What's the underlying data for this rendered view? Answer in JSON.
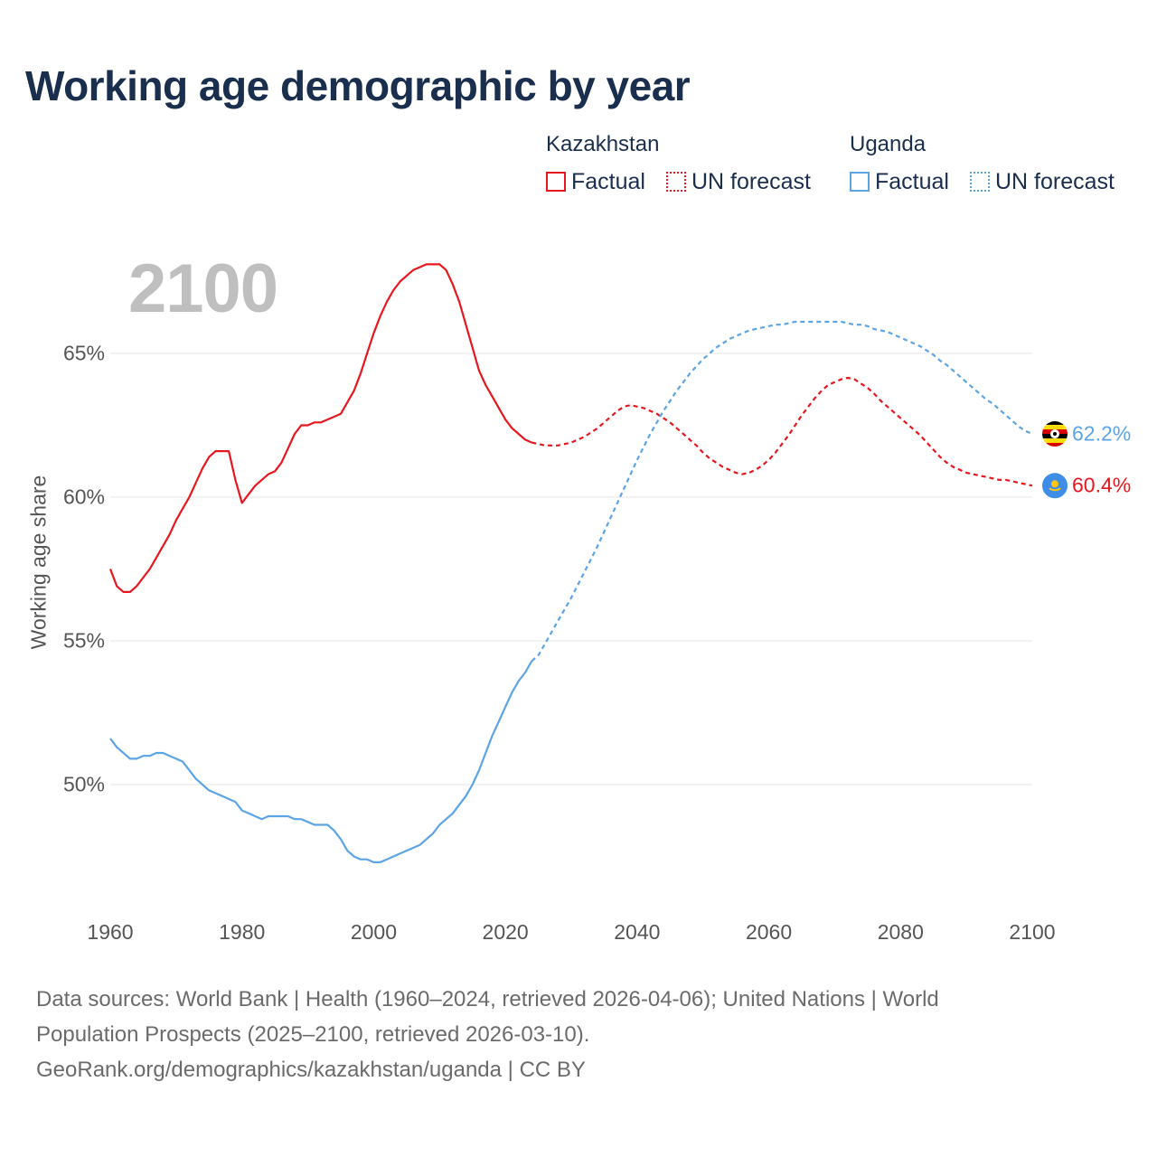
{
  "title": "Working age demographic by year",
  "year_display": "2100",
  "legend": {
    "groups": [
      {
        "country": "Kazakhstan",
        "factual_label": "Factual",
        "forecast_label": "UN forecast",
        "color": "#e8171f"
      },
      {
        "country": "Uganda",
        "factual_label": "Factual",
        "forecast_label": "UN forecast",
        "color": "#5ba4e6"
      }
    ]
  },
  "end_labels": {
    "uganda": "62.2%",
    "kazakhstan": "60.4%"
  },
  "footer": {
    "line1": "Data sources: World Bank | Health (1960–2024, retrieved 2026-04-06); United Nations | World",
    "line2": "Population Prospects (2025–2100, retrieved 2026-03-10).",
    "line3": "GeoRank.org/demographics/kazakhstan/uganda | CC BY"
  },
  "chart_data": {
    "type": "line",
    "title": "Working age demographic by year",
    "xlabel": "",
    "ylabel": "Working age share",
    "xlim": [
      1960,
      2100
    ],
    "ylim": [
      46,
      68.5
    ],
    "x_ticks": [
      1960,
      1980,
      2000,
      2020,
      2040,
      2060,
      2080,
      2100
    ],
    "x_tick_labels": [
      "1960",
      "1980",
      "2000",
      "2020",
      "2040",
      "2060",
      "2080",
      "2100"
    ],
    "y_ticks": [
      50,
      55,
      60,
      65
    ],
    "y_tick_labels": [
      "50%",
      "55%",
      "60%",
      "65%"
    ],
    "grid": true,
    "forecast_start": 2025,
    "series": [
      {
        "name": "Kazakhstan",
        "color": "#e8171f",
        "end_value": 60.4,
        "points": [
          [
            1960,
            57.5
          ],
          [
            1961,
            56.9
          ],
          [
            1962,
            56.7
          ],
          [
            1963,
            56.7
          ],
          [
            1964,
            56.9
          ],
          [
            1965,
            57.2
          ],
          [
            1966,
            57.5
          ],
          [
            1967,
            57.9
          ],
          [
            1968,
            58.3
          ],
          [
            1969,
            58.7
          ],
          [
            1970,
            59.2
          ],
          [
            1971,
            59.6
          ],
          [
            1972,
            60.0
          ],
          [
            1973,
            60.5
          ],
          [
            1974,
            61.0
          ],
          [
            1975,
            61.4
          ],
          [
            1976,
            61.6
          ],
          [
            1977,
            61.6
          ],
          [
            1978,
            61.6
          ],
          [
            1979,
            60.6
          ],
          [
            1980,
            59.8
          ],
          [
            1981,
            60.1
          ],
          [
            1982,
            60.4
          ],
          [
            1983,
            60.6
          ],
          [
            1984,
            60.8
          ],
          [
            1985,
            60.9
          ],
          [
            1986,
            61.2
          ],
          [
            1987,
            61.7
          ],
          [
            1988,
            62.2
          ],
          [
            1989,
            62.5
          ],
          [
            1990,
            62.5
          ],
          [
            1991,
            62.6
          ],
          [
            1992,
            62.6
          ],
          [
            1993,
            62.7
          ],
          [
            1994,
            62.8
          ],
          [
            1995,
            62.9
          ],
          [
            1996,
            63.3
          ],
          [
            1997,
            63.7
          ],
          [
            1998,
            64.3
          ],
          [
            1999,
            65.0
          ],
          [
            2000,
            65.7
          ],
          [
            2001,
            66.3
          ],
          [
            2002,
            66.8
          ],
          [
            2003,
            67.2
          ],
          [
            2004,
            67.5
          ],
          [
            2005,
            67.7
          ],
          [
            2006,
            67.9
          ],
          [
            2007,
            68.0
          ],
          [
            2008,
            68.1
          ],
          [
            2009,
            68.1
          ],
          [
            2010,
            68.1
          ],
          [
            2011,
            67.9
          ],
          [
            2012,
            67.4
          ],
          [
            2013,
            66.8
          ],
          [
            2014,
            66.0
          ],
          [
            2015,
            65.2
          ],
          [
            2016,
            64.4
          ],
          [
            2017,
            63.9
          ],
          [
            2018,
            63.5
          ],
          [
            2019,
            63.1
          ],
          [
            2020,
            62.7
          ],
          [
            2021,
            62.4
          ],
          [
            2022,
            62.2
          ],
          [
            2023,
            62.0
          ],
          [
            2024,
            61.9
          ],
          [
            2025,
            61.85
          ],
          [
            2026,
            61.8
          ],
          [
            2027,
            61.8
          ],
          [
            2028,
            61.8
          ],
          [
            2029,
            61.85
          ],
          [
            2030,
            61.9
          ],
          [
            2031,
            62.0
          ],
          [
            2032,
            62.1
          ],
          [
            2033,
            62.25
          ],
          [
            2034,
            62.4
          ],
          [
            2035,
            62.6
          ],
          [
            2036,
            62.8
          ],
          [
            2037,
            63.0
          ],
          [
            2038,
            63.15
          ],
          [
            2039,
            63.2
          ],
          [
            2040,
            63.15
          ],
          [
            2041,
            63.1
          ],
          [
            2042,
            63.0
          ],
          [
            2043,
            62.9
          ],
          [
            2044,
            62.75
          ],
          [
            2045,
            62.6
          ],
          [
            2046,
            62.4
          ],
          [
            2047,
            62.2
          ],
          [
            2048,
            62.0
          ],
          [
            2049,
            61.8
          ],
          [
            2050,
            61.55
          ],
          [
            2051,
            61.35
          ],
          [
            2052,
            61.2
          ],
          [
            2053,
            61.05
          ],
          [
            2054,
            60.95
          ],
          [
            2055,
            60.85
          ],
          [
            2056,
            60.8
          ],
          [
            2057,
            60.85
          ],
          [
            2058,
            60.95
          ],
          [
            2059,
            61.1
          ],
          [
            2060,
            61.3
          ],
          [
            2061,
            61.55
          ],
          [
            2062,
            61.85
          ],
          [
            2063,
            62.15
          ],
          [
            2064,
            62.5
          ],
          [
            2065,
            62.85
          ],
          [
            2066,
            63.15
          ],
          [
            2067,
            63.45
          ],
          [
            2068,
            63.7
          ],
          [
            2069,
            63.9
          ],
          [
            2070,
            64.0
          ],
          [
            2071,
            64.1
          ],
          [
            2072,
            64.15
          ],
          [
            2073,
            64.1
          ],
          [
            2074,
            63.95
          ],
          [
            2075,
            63.8
          ],
          [
            2076,
            63.6
          ],
          [
            2077,
            63.35
          ],
          [
            2078,
            63.15
          ],
          [
            2079,
            62.95
          ],
          [
            2080,
            62.75
          ],
          [
            2081,
            62.55
          ],
          [
            2082,
            62.35
          ],
          [
            2083,
            62.15
          ],
          [
            2084,
            61.9
          ],
          [
            2085,
            61.65
          ],
          [
            2086,
            61.4
          ],
          [
            2087,
            61.2
          ],
          [
            2088,
            61.05
          ],
          [
            2089,
            60.95
          ],
          [
            2090,
            60.85
          ],
          [
            2091,
            60.8
          ],
          [
            2092,
            60.75
          ],
          [
            2093,
            60.7
          ],
          [
            2094,
            60.65
          ],
          [
            2095,
            60.6
          ],
          [
            2096,
            60.6
          ],
          [
            2097,
            60.55
          ],
          [
            2098,
            60.5
          ],
          [
            2099,
            60.45
          ],
          [
            2100,
            60.4
          ]
        ]
      },
      {
        "name": "Uganda",
        "color": "#5ba4e6",
        "end_value": 62.2,
        "points": [
          [
            1960,
            51.6
          ],
          [
            1961,
            51.3
          ],
          [
            1962,
            51.1
          ],
          [
            1963,
            50.9
          ],
          [
            1964,
            50.9
          ],
          [
            1965,
            51.0
          ],
          [
            1966,
            51.0
          ],
          [
            1967,
            51.1
          ],
          [
            1968,
            51.1
          ],
          [
            1969,
            51.0
          ],
          [
            1970,
            50.9
          ],
          [
            1971,
            50.8
          ],
          [
            1972,
            50.5
          ],
          [
            1973,
            50.2
          ],
          [
            1974,
            50.0
          ],
          [
            1975,
            49.8
          ],
          [
            1976,
            49.7
          ],
          [
            1977,
            49.6
          ],
          [
            1978,
            49.5
          ],
          [
            1979,
            49.4
          ],
          [
            1980,
            49.1
          ],
          [
            1981,
            49.0
          ],
          [
            1982,
            48.9
          ],
          [
            1983,
            48.8
          ],
          [
            1984,
            48.9
          ],
          [
            1985,
            48.9
          ],
          [
            1986,
            48.9
          ],
          [
            1987,
            48.9
          ],
          [
            1988,
            48.8
          ],
          [
            1989,
            48.8
          ],
          [
            1990,
            48.7
          ],
          [
            1991,
            48.6
          ],
          [
            1992,
            48.6
          ],
          [
            1993,
            48.6
          ],
          [
            1994,
            48.4
          ],
          [
            1995,
            48.1
          ],
          [
            1996,
            47.7
          ],
          [
            1997,
            47.5
          ],
          [
            1998,
            47.4
          ],
          [
            1999,
            47.4
          ],
          [
            2000,
            47.3
          ],
          [
            2001,
            47.3
          ],
          [
            2002,
            47.4
          ],
          [
            2003,
            47.5
          ],
          [
            2004,
            47.6
          ],
          [
            2005,
            47.7
          ],
          [
            2006,
            47.8
          ],
          [
            2007,
            47.9
          ],
          [
            2008,
            48.1
          ],
          [
            2009,
            48.3
          ],
          [
            2010,
            48.6
          ],
          [
            2011,
            48.8
          ],
          [
            2012,
            49.0
          ],
          [
            2013,
            49.3
          ],
          [
            2014,
            49.6
          ],
          [
            2015,
            50.0
          ],
          [
            2016,
            50.5
          ],
          [
            2017,
            51.1
          ],
          [
            2018,
            51.7
          ],
          [
            2019,
            52.2
          ],
          [
            2020,
            52.7
          ],
          [
            2021,
            53.2
          ],
          [
            2022,
            53.6
          ],
          [
            2023,
            53.9
          ],
          [
            2024,
            54.3
          ],
          [
            2025,
            54.5
          ],
          [
            2026,
            54.9
          ],
          [
            2027,
            55.3
          ],
          [
            2028,
            55.7
          ],
          [
            2029,
            56.1
          ],
          [
            2030,
            56.5
          ],
          [
            2031,
            56.95
          ],
          [
            2032,
            57.4
          ],
          [
            2033,
            57.85
          ],
          [
            2034,
            58.3
          ],
          [
            2035,
            58.8
          ],
          [
            2036,
            59.3
          ],
          [
            2037,
            59.8
          ],
          [
            2038,
            60.3
          ],
          [
            2039,
            60.8
          ],
          [
            2040,
            61.3
          ],
          [
            2041,
            61.75
          ],
          [
            2042,
            62.2
          ],
          [
            2043,
            62.6
          ],
          [
            2044,
            63.0
          ],
          [
            2045,
            63.35
          ],
          [
            2046,
            63.7
          ],
          [
            2047,
            64.0
          ],
          [
            2048,
            64.3
          ],
          [
            2049,
            64.55
          ],
          [
            2050,
            64.8
          ],
          [
            2051,
            65.0
          ],
          [
            2052,
            65.2
          ],
          [
            2053,
            65.35
          ],
          [
            2054,
            65.5
          ],
          [
            2055,
            65.6
          ],
          [
            2056,
            65.7
          ],
          [
            2057,
            65.8
          ],
          [
            2058,
            65.85
          ],
          [
            2059,
            65.9
          ],
          [
            2060,
            65.95
          ],
          [
            2061,
            66.0
          ],
          [
            2062,
            66.0
          ],
          [
            2063,
            66.05
          ],
          [
            2064,
            66.1
          ],
          [
            2065,
            66.1
          ],
          [
            2066,
            66.1
          ],
          [
            2067,
            66.1
          ],
          [
            2068,
            66.1
          ],
          [
            2069,
            66.1
          ],
          [
            2070,
            66.1
          ],
          [
            2071,
            66.1
          ],
          [
            2072,
            66.05
          ],
          [
            2073,
            66.0
          ],
          [
            2074,
            66.0
          ],
          [
            2075,
            65.95
          ],
          [
            2076,
            65.85
          ],
          [
            2077,
            65.8
          ],
          [
            2078,
            65.75
          ],
          [
            2079,
            65.65
          ],
          [
            2080,
            65.55
          ],
          [
            2081,
            65.45
          ],
          [
            2082,
            65.35
          ],
          [
            2083,
            65.25
          ],
          [
            2084,
            65.1
          ],
          [
            2085,
            64.95
          ],
          [
            2086,
            64.75
          ],
          [
            2087,
            64.6
          ],
          [
            2088,
            64.4
          ],
          [
            2089,
            64.2
          ],
          [
            2090,
            64.0
          ],
          [
            2091,
            63.8
          ],
          [
            2092,
            63.6
          ],
          [
            2093,
            63.4
          ],
          [
            2094,
            63.25
          ],
          [
            2095,
            63.05
          ],
          [
            2096,
            62.85
          ],
          [
            2097,
            62.65
          ],
          [
            2098,
            62.45
          ],
          [
            2099,
            62.3
          ],
          [
            2100,
            62.2
          ]
        ]
      }
    ]
  }
}
